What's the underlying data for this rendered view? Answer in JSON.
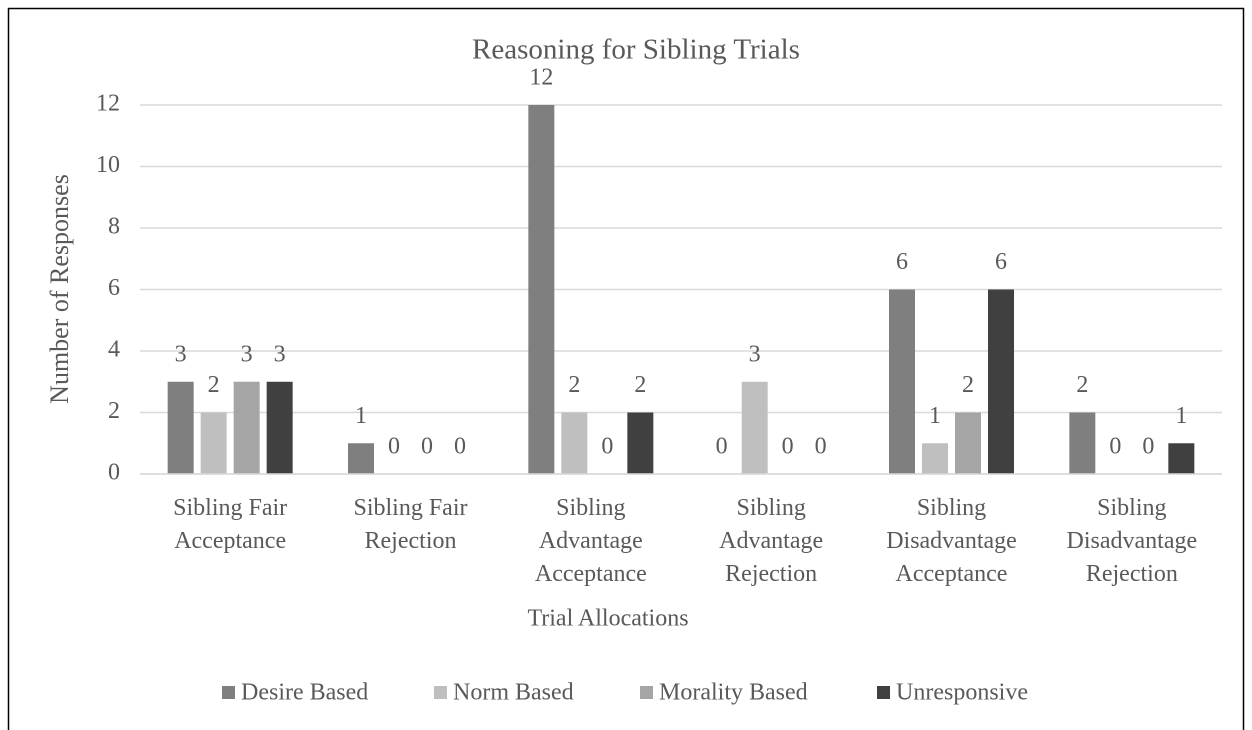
{
  "chart_data": {
    "type": "bar",
    "title": "Reasoning for Sibling Trials",
    "x_label": "Trial Allocations",
    "y_label": "Number of Responses",
    "categories": [
      "Sibling Fair Acceptance",
      "Sibling Fair Rejection",
      "Sibling Advantage Acceptance",
      "Sibling Advantage Rejection",
      "Sibling Disadvantage Acceptance",
      "Sibling Disadvantage Rejection"
    ],
    "series": [
      {
        "name": "Desire Based",
        "color": "#7f7f7f",
        "values": [
          3,
          1,
          12,
          0,
          6,
          2
        ]
      },
      {
        "name": "Norm Based",
        "color": "#bfbfbf",
        "values": [
          2,
          0,
          2,
          3,
          1,
          0
        ]
      },
      {
        "name": "Morality Based",
        "color": "#a5a5a5",
        "values": [
          3,
          0,
          0,
          0,
          2,
          0
        ]
      },
      {
        "name": "Unresponsive",
        "color": "#404040",
        "values": [
          3,
          0,
          2,
          0,
          6,
          1
        ]
      }
    ],
    "ylim": [
      0,
      12
    ],
    "yticks": [
      0,
      2,
      4,
      6,
      8,
      10,
      12
    ],
    "grid": true,
    "legend": "bottom"
  }
}
